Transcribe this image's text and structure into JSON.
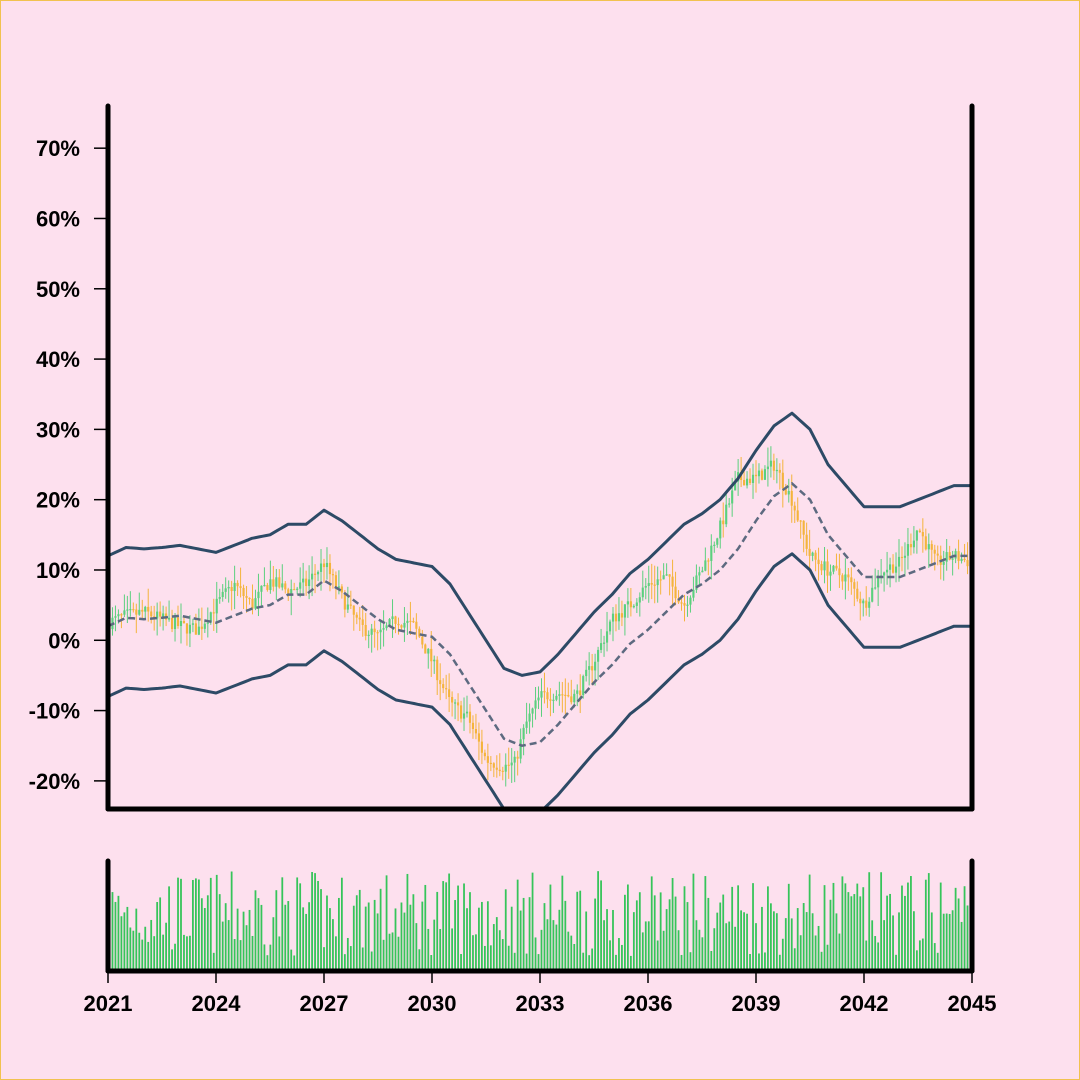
{
  "colors": {
    "background": "#fde0ee",
    "border": "#f2c24f",
    "up": "#5bd07e",
    "down": "#f4b43c",
    "volume": "#36c45a",
    "band": "#2d4a66",
    "mid": "#5d6a80",
    "axis": "#000000"
  },
  "chart_data": {
    "type": "candlestick",
    "title": "",
    "xlabel": "",
    "ylabel": "",
    "x_range": [
      2021,
      2045
    ],
    "ylim": [
      -24,
      76
    ],
    "x_ticks": [
      "2021",
      "2024",
      "2027",
      "2030",
      "2033",
      "2036",
      "2039",
      "2042",
      "2045"
    ],
    "y_ticks": [
      "70%",
      "60%",
      "50%",
      "40%",
      "30%",
      "20%",
      "10%",
      "0%",
      "-10%",
      "-20%"
    ],
    "y_tick_values": [
      70,
      60,
      50,
      40,
      30,
      20,
      10,
      0,
      -10,
      -20
    ],
    "price_path": [
      [
        2021.0,
        2.5
      ],
      [
        2021.5,
        3.5
      ],
      [
        2022.0,
        4.0
      ],
      [
        2022.5,
        3.0
      ],
      [
        2023.0,
        2.0
      ],
      [
        2023.5,
        1.5
      ],
      [
        2024.0,
        5.0
      ],
      [
        2024.5,
        8.0
      ],
      [
        2025.0,
        5.0
      ],
      [
        2025.5,
        8.5
      ],
      [
        2026.0,
        7.0
      ],
      [
        2026.5,
        8.0
      ],
      [
        2027.0,
        11.0
      ],
      [
        2027.5,
        6.0
      ],
      [
        2028.0,
        2.0
      ],
      [
        2028.5,
        0.5
      ],
      [
        2029.0,
        3.0
      ],
      [
        2029.5,
        2.0
      ],
      [
        2030.0,
        -3.0
      ],
      [
        2030.5,
        -9.0
      ],
      [
        2031.0,
        -11.0
      ],
      [
        2031.5,
        -17.0
      ],
      [
        2032.0,
        -18.0
      ],
      [
        2032.3,
        -17.5
      ],
      [
        2032.6,
        -12.0
      ],
      [
        2033.0,
        -8.0
      ],
      [
        2033.5,
        -7.5
      ],
      [
        2034.0,
        -8.0
      ],
      [
        2034.5,
        -3.0
      ],
      [
        2035.0,
        3.0
      ],
      [
        2035.5,
        5.0
      ],
      [
        2036.0,
        8.0
      ],
      [
        2036.5,
        9.0
      ],
      [
        2037.0,
        5.0
      ],
      [
        2037.5,
        10.0
      ],
      [
        2038.0,
        16.0
      ],
      [
        2038.5,
        23.0
      ],
      [
        2039.0,
        23.0
      ],
      [
        2039.5,
        25.0
      ],
      [
        2040.0,
        20.0
      ],
      [
        2040.5,
        12.0
      ],
      [
        2041.0,
        10.0
      ],
      [
        2041.5,
        9.0
      ],
      [
        2042.0,
        5.0
      ],
      [
        2042.5,
        10.0
      ],
      [
        2043.0,
        11.0
      ],
      [
        2043.5,
        16.0
      ],
      [
        2044.0,
        11.0
      ],
      [
        2044.5,
        12.0
      ],
      [
        2045.0,
        11.0
      ]
    ],
    "mid_path": [
      [
        2021.0,
        2.0
      ],
      [
        2021.5,
        3.2
      ],
      [
        2022.0,
        3.0
      ],
      [
        2022.5,
        3.2
      ],
      [
        2023.0,
        3.5
      ],
      [
        2023.5,
        3.0
      ],
      [
        2024.0,
        2.5
      ],
      [
        2024.5,
        3.5
      ],
      [
        2025.0,
        4.5
      ],
      [
        2025.5,
        5.0
      ],
      [
        2026.0,
        6.5
      ],
      [
        2026.5,
        6.5
      ],
      [
        2027.0,
        8.5
      ],
      [
        2027.5,
        7.0
      ],
      [
        2028.0,
        5.0
      ],
      [
        2028.5,
        3.0
      ],
      [
        2029.0,
        1.5
      ],
      [
        2029.5,
        1.0
      ],
      [
        2030.0,
        0.5
      ],
      [
        2030.5,
        -2.0
      ],
      [
        2031.0,
        -6.0
      ],
      [
        2031.5,
        -10.0
      ],
      [
        2032.0,
        -14.0
      ],
      [
        2032.5,
        -15.0
      ],
      [
        2033.0,
        -14.5
      ],
      [
        2033.5,
        -12.0
      ],
      [
        2034.0,
        -9.0
      ],
      [
        2034.5,
        -6.0
      ],
      [
        2035.0,
        -3.5
      ],
      [
        2035.5,
        -0.5
      ],
      [
        2036.0,
        1.5
      ],
      [
        2036.5,
        4.0
      ],
      [
        2037.0,
        6.5
      ],
      [
        2037.5,
        8.0
      ],
      [
        2038.0,
        10.0
      ],
      [
        2038.5,
        13.0
      ],
      [
        2039.0,
        17.0
      ],
      [
        2039.5,
        20.5
      ],
      [
        2040.0,
        22.3
      ],
      [
        2040.5,
        20.0
      ],
      [
        2041.0,
        15.0
      ],
      [
        2041.5,
        12.0
      ],
      [
        2042.0,
        9.0
      ],
      [
        2042.5,
        9.0
      ],
      [
        2043.0,
        9.0
      ],
      [
        2043.5,
        10.0
      ],
      [
        2044.0,
        11.0
      ],
      [
        2044.5,
        12.0
      ],
      [
        2045.0,
        12.0
      ]
    ],
    "band_width": 10,
    "upper_label": "",
    "lower_label": "",
    "volume_panel": true
  }
}
